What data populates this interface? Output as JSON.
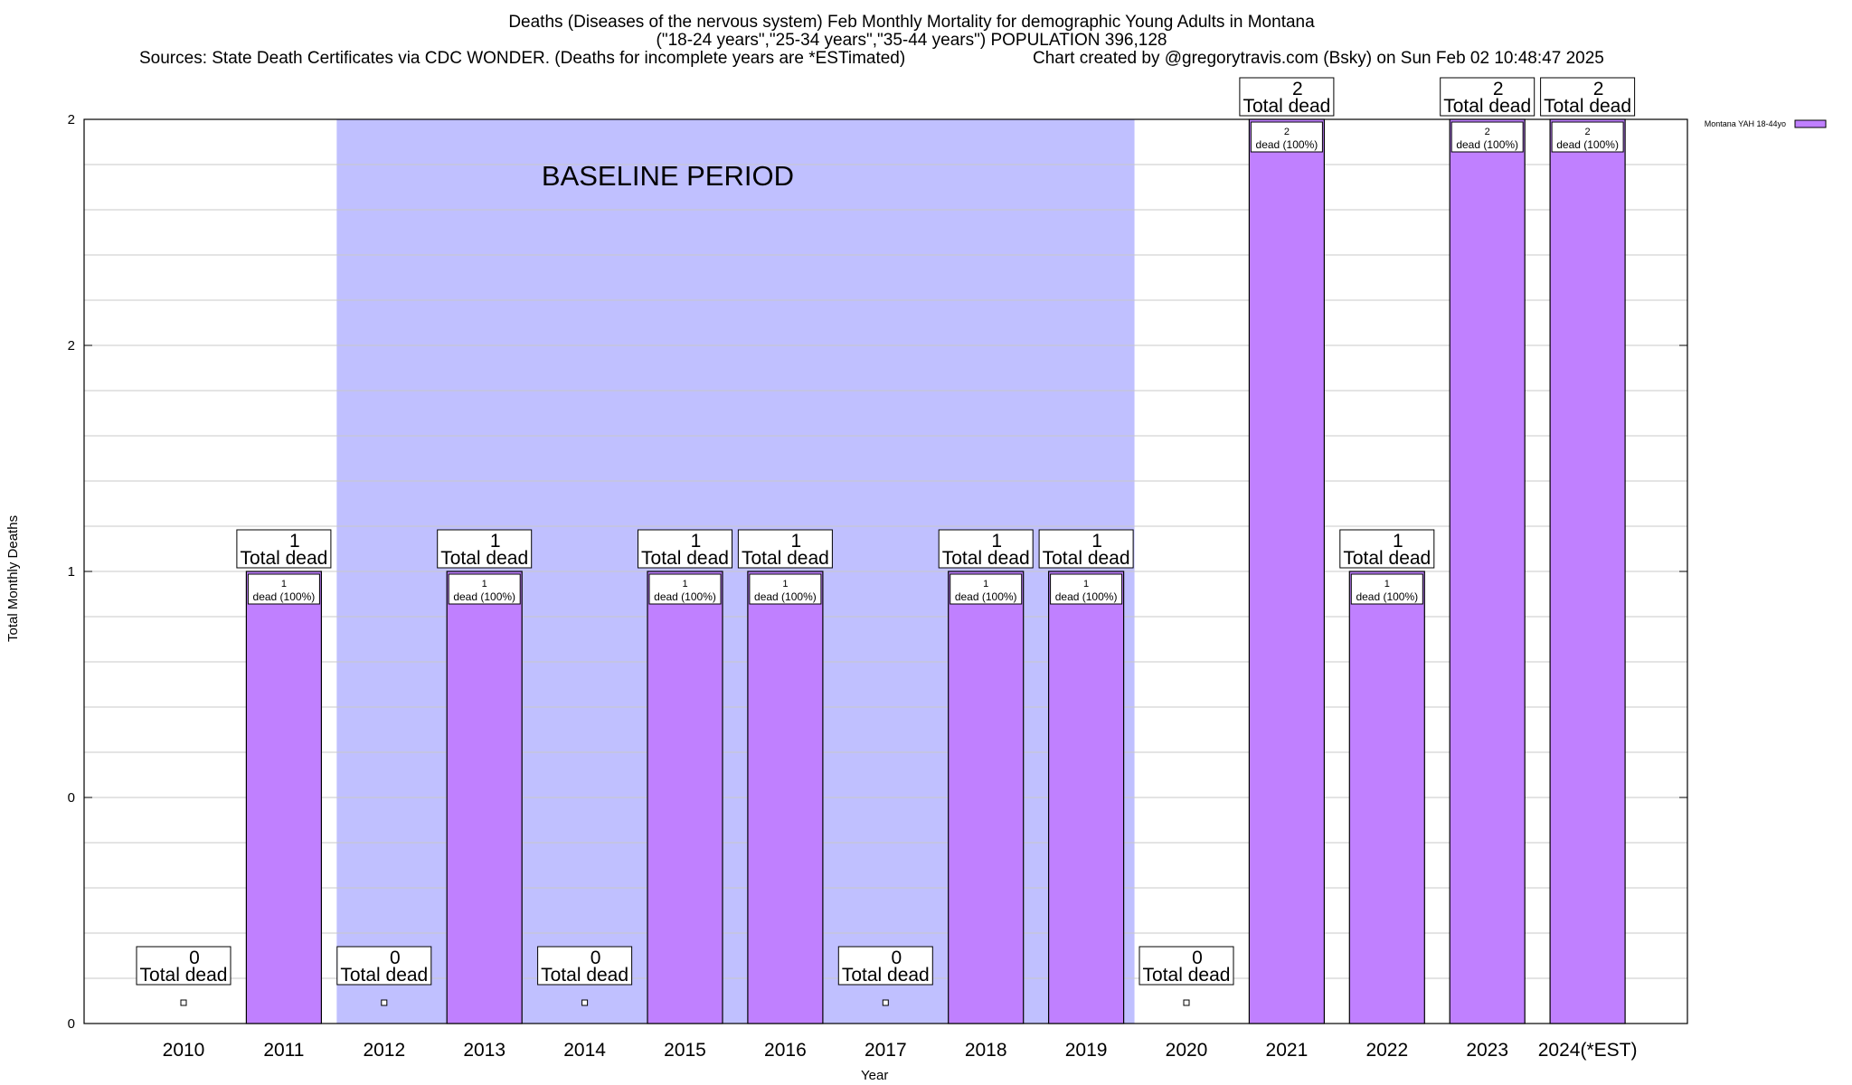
{
  "chart_data": {
    "type": "bar",
    "title": "Deaths (Diseases of the nervous system) Feb Monthly Mortality for demographic Young Adults in Montana",
    "subtitle": "(\"18-24 years\",\"25-34 years\",\"35-44 years\") POPULATION 396,128",
    "sources": "Sources: State Death Certificates via CDC WONDER. (Deaths for incomplete years are *ESTimated)",
    "credit": "Chart created by @gregorytravis.com (Bsky) on Sun Feb 02 10:48:47 2025",
    "xlabel": "Year",
    "ylabel": "Total Monthly Deaths",
    "ylim": [
      0,
      2
    ],
    "y_tick_labels": [
      "0",
      "0",
      "1",
      "2",
      "2"
    ],
    "y_tick_values": [
      0,
      0.5,
      1,
      1.5,
      2
    ],
    "grid": true,
    "legend": "top-right",
    "categories": [
      "2010",
      "2011",
      "2012",
      "2013",
      "2014",
      "2015",
      "2016",
      "2017",
      "2018",
      "2019",
      "2020",
      "2021",
      "2022",
      "2023",
      "2024(*EST)"
    ],
    "series": [
      {
        "name": "Montana YAH 18-44yo",
        "color": "#c080ff",
        "values": [
          0,
          1,
          0,
          1,
          0,
          1,
          1,
          0,
          1,
          1,
          0,
          2,
          1,
          2,
          2
        ]
      }
    ],
    "total_label_suffix": "Total dead",
    "bar_label_suffix": "dead (100%)",
    "baseline": {
      "label": "BASELINE PERIOD",
      "start": "2012",
      "end": "2019",
      "color": "#c0c0ff"
    }
  }
}
